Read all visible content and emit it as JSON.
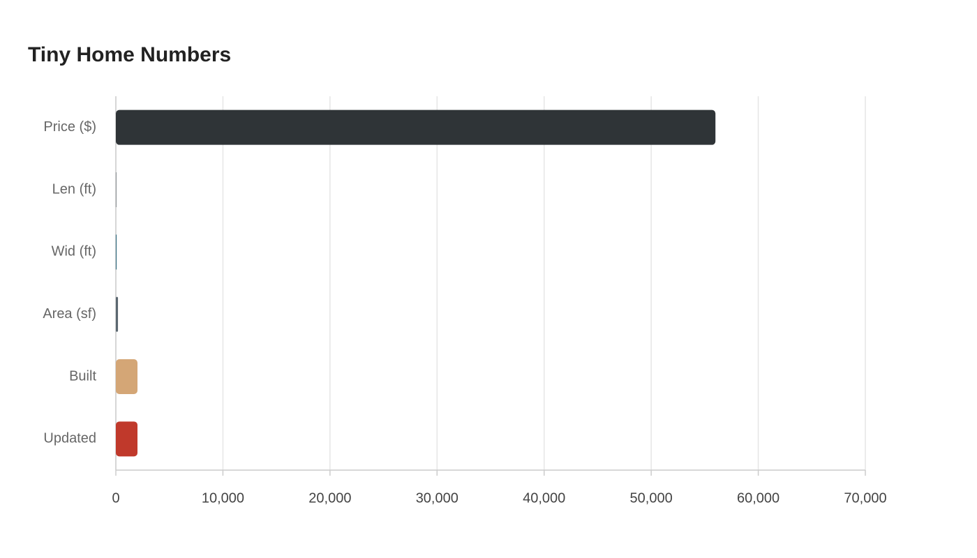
{
  "chart_data": {
    "type": "bar",
    "orientation": "horizontal",
    "title": "Tiny Home Numbers",
    "categories": [
      "Price ($)",
      "Len (ft)",
      "Wid (ft)",
      "Area (sf)",
      "Built",
      "Updated"
    ],
    "values": [
      56000,
      24,
      8.5,
      200,
      2020,
      2020
    ],
    "colors": [
      "#2f3437",
      "#8a8f93",
      "#1f5f73",
      "#5b6770",
      "#d4a676",
      "#c0392b"
    ],
    "xlim": [
      0,
      70000
    ],
    "xticks": [
      0,
      {
        "value": 10000,
        "label": "10,000"
      },
      {
        "value": 20000,
        "label": "20,000"
      },
      {
        "value": 30000,
        "label": "30,000"
      },
      {
        "value": 40000,
        "label": "40,000"
      },
      {
        "value": 50000,
        "label": "50,000"
      },
      {
        "value": 60000,
        "label": "60,000"
      },
      {
        "value": 70000,
        "label": "70,000"
      }
    ],
    "grid": true
  }
}
